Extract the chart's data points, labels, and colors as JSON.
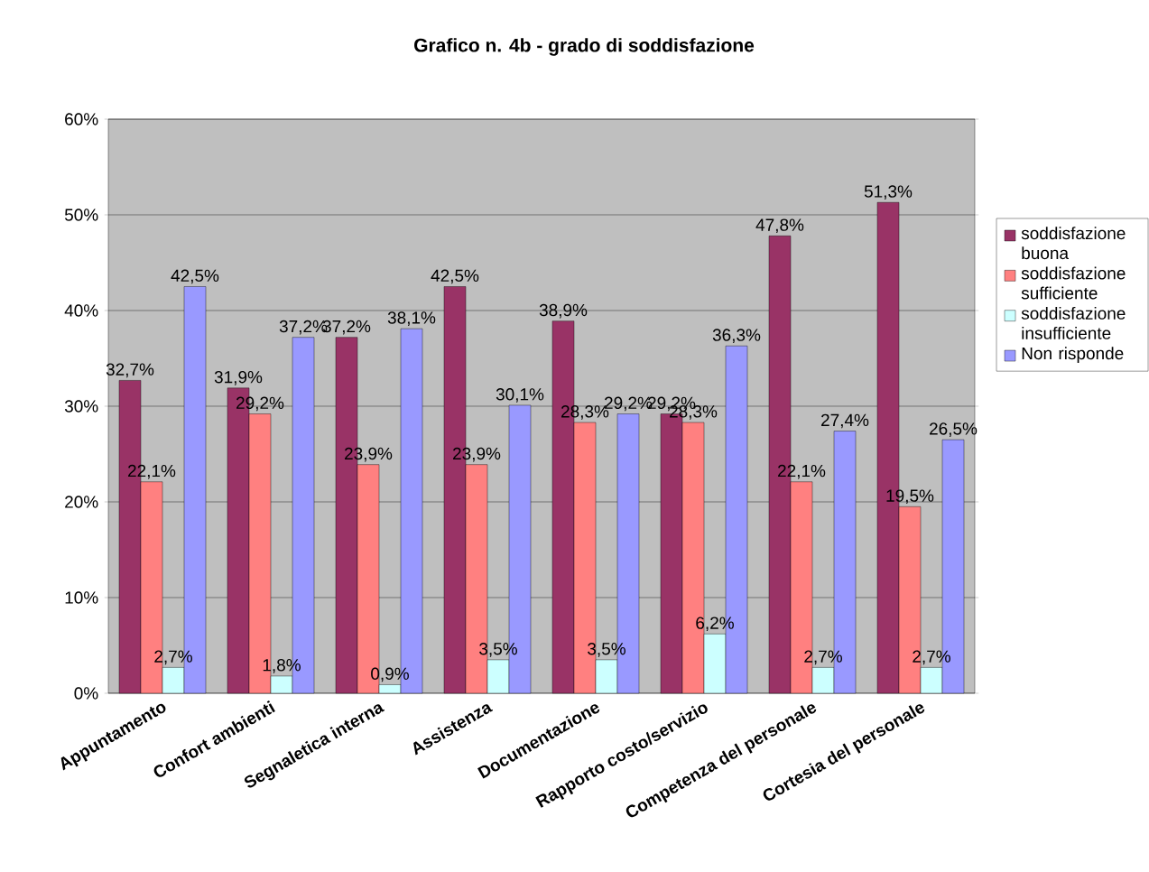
{
  "chart_data": {
    "type": "bar",
    "title": "Grafico n. 4b - grado di soddisfazione",
    "categories": [
      "Appuntamento",
      "Confort ambienti",
      "Segnaletica interna",
      "Assistenza",
      "Documentazione",
      "Rapporto costo/servizio",
      "Competenza  del personale",
      "Cortesia del personale"
    ],
    "series": [
      {
        "name": "soddisfazione buona",
        "color": "#993366",
        "values": [
          32.7,
          31.9,
          37.2,
          42.5,
          38.9,
          29.2,
          47.8,
          51.3
        ],
        "value_labels": [
          "32,7%",
          "31,9%",
          "37,2%",
          "42,5%",
          "38,9%",
          "29,2%",
          "47,8%",
          "51,3%"
        ]
      },
      {
        "name": "soddisfazione sufficiente",
        "color": "#ff8080",
        "values": [
          22.1,
          29.2,
          23.9,
          23.9,
          28.3,
          28.3,
          22.1,
          19.5
        ],
        "value_labels": [
          "22,1%",
          "29,2%",
          "23,9%",
          "23,9%",
          "28,3%",
          "28,3%",
          "22,1%",
          "19,5%"
        ]
      },
      {
        "name": "soddisfazione insufficiente",
        "color": "#ccffff",
        "values": [
          2.7,
          1.8,
          0.9,
          3.5,
          3.5,
          6.2,
          2.7,
          2.7
        ],
        "value_labels": [
          "2,7%",
          "1,8%",
          "0,9%",
          "3,5%",
          "3,5%",
          "6,2%",
          "2,7%",
          "2,7%"
        ]
      },
      {
        "name": "Non risponde",
        "color": "#9999ff",
        "values": [
          42.5,
          37.2,
          38.1,
          30.1,
          29.2,
          36.3,
          27.4,
          26.5
        ],
        "value_labels": [
          "42,5%",
          "37,2%",
          "38,1%",
          "30,1%",
          "29,2%",
          "36,3%",
          "27,4%",
          "26,5%"
        ]
      }
    ],
    "ylim": [
      0,
      60
    ],
    "yticks": [
      {
        "value": 0,
        "label": "0%"
      },
      {
        "value": 10,
        "label": "10%"
      },
      {
        "value": 20,
        "label": "20%"
      },
      {
        "value": 30,
        "label": "30%"
      },
      {
        "value": 40,
        "label": "40%"
      },
      {
        "value": 50,
        "label": "50%"
      },
      {
        "value": 60,
        "label": "60%"
      }
    ],
    "grid": "y",
    "legend": "right"
  }
}
